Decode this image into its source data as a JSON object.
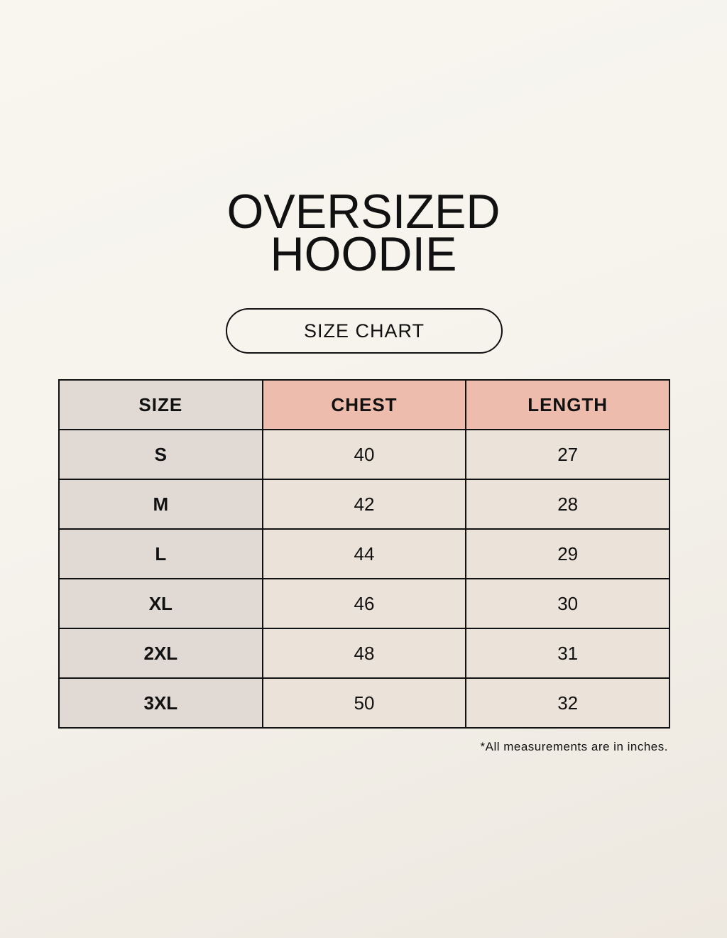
{
  "title": {
    "line1": "OVERSIZED",
    "line2": "HOODIE"
  },
  "subtitle": "SIZE CHART",
  "table": {
    "headers": [
      "SIZE",
      "CHEST",
      "LENGTH"
    ],
    "rows": [
      [
        "S",
        "40",
        "27"
      ],
      [
        "M",
        "42",
        "28"
      ],
      [
        "L",
        "44",
        "29"
      ],
      [
        "XL",
        "46",
        "30"
      ],
      [
        "2XL",
        "48",
        "31"
      ],
      [
        "3XL",
        "50",
        "32"
      ]
    ]
  },
  "note": "*All measurements are in inches.",
  "colors": {
    "size_column": "#e0d9d4",
    "header_accent": "#edbcad",
    "cell": "#ebe3d9"
  }
}
